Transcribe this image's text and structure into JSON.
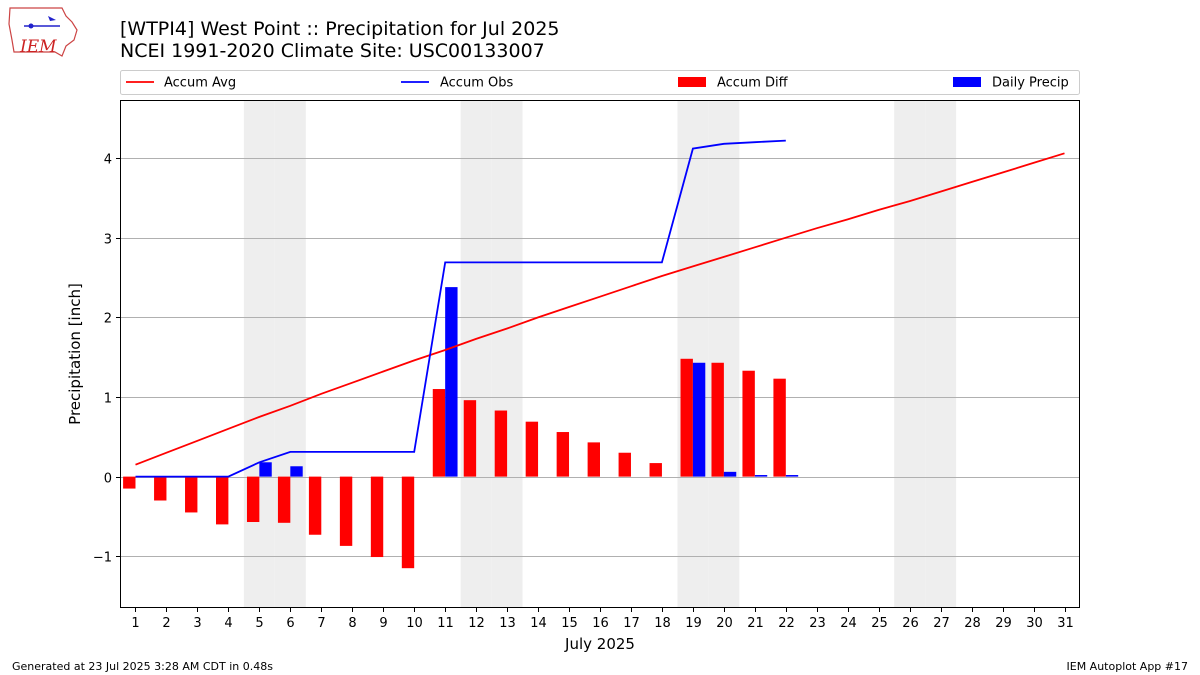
{
  "logo": {
    "text": "IEM"
  },
  "footer": {
    "left": "Generated at 23 Jul 2025 3:28 AM CDT in 0.48s",
    "right": "IEM Autoplot App #17"
  },
  "colors": {
    "avg": "#ff0000",
    "obs": "#0000ff",
    "diff": "#ff0000",
    "daily": "#0000ff",
    "weekend": "#eeeeee",
    "grid": "#b0b0b0"
  },
  "chart_data": {
    "type": "bar",
    "title_line1": "[WTPI4] West Point :: Precipitation for Jul 2025",
    "title_line2": "NCEI 1991-2020 Climate Site: USC00133007",
    "xlabel": "July 2025",
    "ylabel": "Precipitation [inch]",
    "xlim": [
      0.5,
      31.5
    ],
    "ylim": [
      -1.65,
      4.73
    ],
    "yticks": [
      -1,
      0,
      1,
      2,
      3,
      4
    ],
    "ytick_labels": [
      "−1",
      "0",
      "1",
      "2",
      "3",
      "4"
    ],
    "days": [
      1,
      2,
      3,
      4,
      5,
      6,
      7,
      8,
      9,
      10,
      11,
      12,
      13,
      14,
      15,
      16,
      17,
      18,
      19,
      20,
      21,
      22,
      23,
      24,
      25,
      26,
      27,
      28,
      29,
      30,
      31
    ],
    "weekend_days": [
      5,
      6,
      12,
      13,
      19,
      20,
      26,
      27
    ],
    "legend": [
      "Accum Avg",
      "Accum Obs",
      "Accum Diff",
      "Daily Precip"
    ],
    "accum_avg": [
      0.15,
      0.3,
      0.45,
      0.6,
      0.75,
      0.89,
      1.04,
      1.18,
      1.32,
      1.46,
      1.59,
      1.73,
      1.86,
      2.0,
      2.13,
      2.26,
      2.39,
      2.52,
      2.64,
      2.76,
      2.88,
      3.0,
      3.12,
      3.23,
      3.35,
      3.46,
      3.58,
      3.7,
      3.82,
      3.94,
      4.06
    ],
    "accum_obs": [
      0.0,
      0.0,
      0.0,
      0.0,
      0.18,
      0.31,
      0.31,
      0.31,
      0.31,
      0.31,
      2.69,
      2.69,
      2.69,
      2.69,
      2.69,
      2.69,
      2.69,
      2.69,
      4.12,
      4.18,
      4.2,
      4.22
    ],
    "accum_diff": [
      -0.15,
      -0.3,
      -0.45,
      -0.6,
      -0.57,
      -0.58,
      -0.73,
      -0.87,
      -1.01,
      -1.15,
      1.1,
      0.96,
      0.83,
      0.69,
      0.56,
      0.43,
      0.3,
      0.17,
      1.48,
      1.43,
      1.33,
      1.23
    ],
    "daily_precip": [
      0.0,
      0.0,
      0.0,
      0.0,
      0.18,
      0.13,
      0.0,
      0.0,
      0.0,
      0.0,
      2.38,
      0.0,
      0.0,
      0.0,
      0.0,
      0.0,
      0.0,
      0.0,
      1.43,
      0.06,
      0.02,
      0.02
    ]
  }
}
